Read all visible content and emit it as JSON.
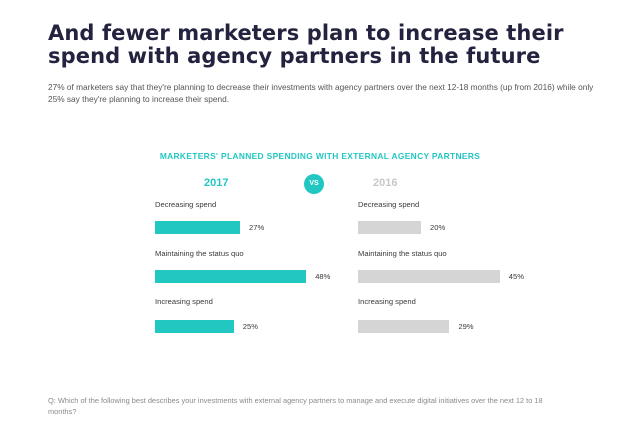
{
  "headline": "And fewer marketers plan to increase their spend with agency partners in the future",
  "subtitle": "27% of marketers say that they're planning to decrease their investments with agency partners over the next 12-18 months (up from 2016) while only 25% say they're planning to increase their spend.",
  "question": "Q: Which of the following best describes your investments with external agency partners to manage and execute digital initiatives over the next 12 to 18 months?",
  "colors": {
    "accent": "#22c7c2",
    "muted": "#d5d5d5",
    "heading": "#23233f"
  },
  "chart_data": {
    "type": "bar",
    "orientation": "horizontal",
    "title": "MARKETERS' PLANNED SPENDING WITH EXTERNAL AGENCY PARTNERS",
    "divider_label": "VS",
    "categories": [
      "Decreasing spend",
      "Maintaining the status quo",
      "Increasing spend"
    ],
    "series": [
      {
        "name": "2017",
        "color": "#22c7c2",
        "values": [
          27,
          48,
          25
        ],
        "value_labels": [
          "27%",
          "48%",
          "25%"
        ]
      },
      {
        "name": "2016",
        "color": "#d5d5d5",
        "values": [
          20,
          45,
          29
        ],
        "value_labels": [
          "20%",
          "45%",
          "29%"
        ]
      }
    ],
    "unit": "%",
    "grid": false,
    "legend": "series names above each panel"
  }
}
